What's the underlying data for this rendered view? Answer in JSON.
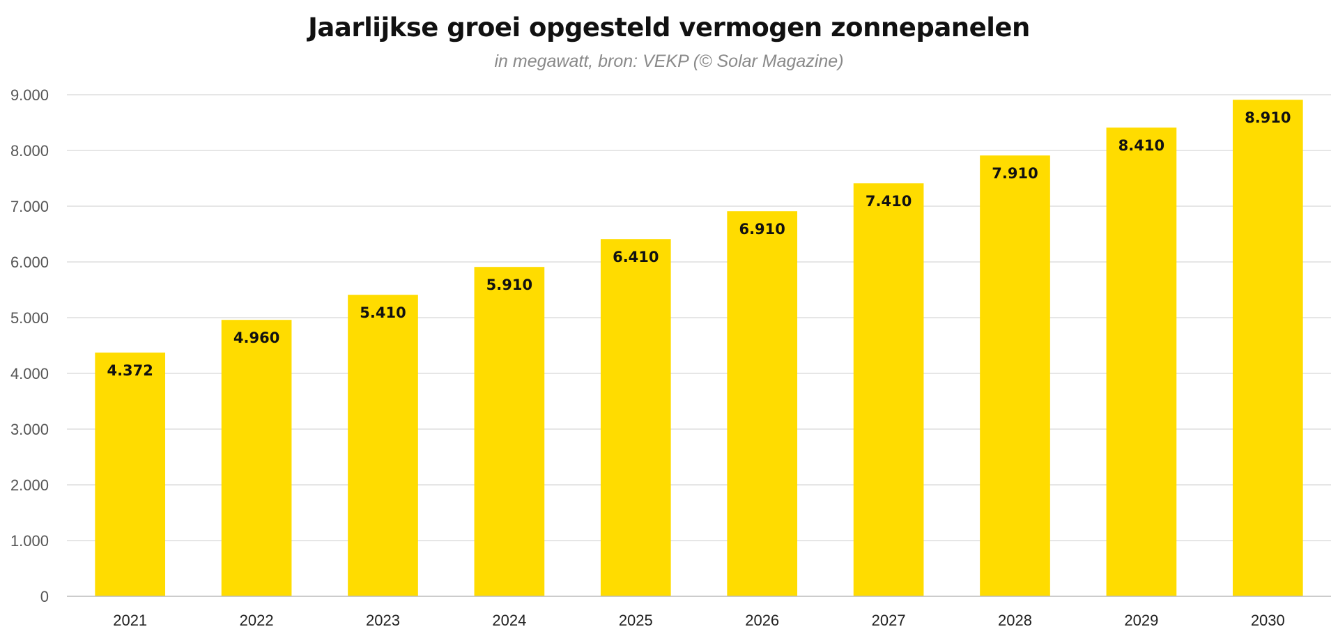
{
  "colors": {
    "bar": "#FFDC00",
    "grid": "#DDDDDD",
    "axis": "#BBBBBB",
    "title": "#111111",
    "subtitle": "#8A8A8A"
  },
  "chart_data": {
    "type": "bar",
    "title": "Jaarlijkse groei opgesteld vermogen zonnepanelen",
    "subtitle": "in megawatt, bron: VEKP (© Solar Magazine)",
    "xlabel": "",
    "ylabel": "",
    "categories": [
      "2021",
      "2022",
      "2023",
      "2024",
      "2025",
      "2026",
      "2027",
      "2028",
      "2029",
      "2030"
    ],
    "values": [
      4372,
      4960,
      5410,
      5910,
      6410,
      6910,
      7410,
      7910,
      8410,
      8910
    ],
    "value_labels": [
      "4.372",
      "4.960",
      "5.410",
      "5.910",
      "6.410",
      "6.910",
      "7.410",
      "7.910",
      "8.410",
      "8.910"
    ],
    "ylim": [
      0,
      9000
    ],
    "y_ticks": [
      0,
      1000,
      2000,
      3000,
      4000,
      5000,
      6000,
      7000,
      8000,
      9000
    ],
    "y_tick_labels": [
      "0",
      "1.000",
      "2.000",
      "3.000",
      "4.000",
      "5.000",
      "6.000",
      "7.000",
      "8.000",
      "9.000"
    ],
    "grid": true,
    "legend": "none"
  }
}
